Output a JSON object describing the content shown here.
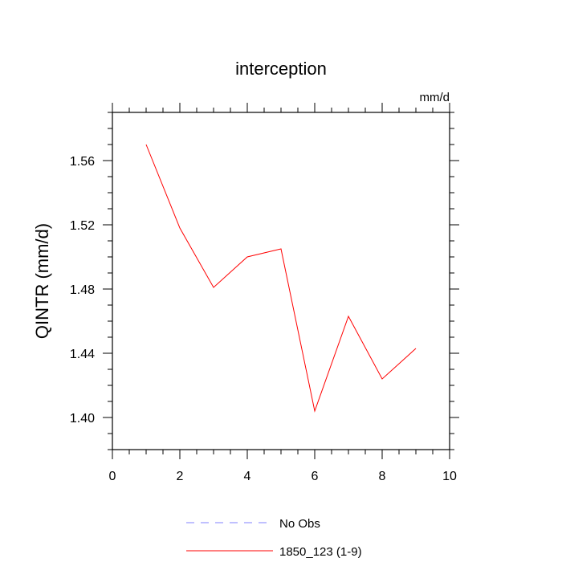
{
  "chart_data": {
    "type": "line",
    "title": "interception",
    "units_label": "mm/d",
    "ylabel": "QINTR  (mm/d)",
    "xlabel": "",
    "xlim": [
      0,
      10
    ],
    "ylim": [
      1.38,
      1.59
    ],
    "x_ticks": [
      0,
      2,
      4,
      6,
      8,
      10
    ],
    "y_ticks": [
      1.4,
      1.44,
      1.48,
      1.52,
      1.56
    ],
    "x_tick_labels": [
      "0",
      "2",
      "4",
      "6",
      "8",
      "10"
    ],
    "y_tick_labels": [
      "1.40",
      "1.44",
      "1.48",
      "1.52",
      "1.56"
    ],
    "grid": false,
    "legend_position": "bottom",
    "series": [
      {
        "name": "1850_123 (1-9)",
        "color": "#ff0000",
        "style": "solid",
        "x": [
          1,
          2,
          3,
          4,
          5,
          6,
          7,
          8,
          9
        ],
        "y": [
          1.57,
          1.518,
          1.481,
          1.5,
          1.505,
          1.404,
          1.463,
          1.424,
          1.443
        ]
      }
    ],
    "legend": [
      {
        "label": "No Obs",
        "color": "#8080ff",
        "style": "dashed"
      },
      {
        "label": "1850_123 (1-9)",
        "color": "#ff0000",
        "style": "solid"
      }
    ]
  }
}
